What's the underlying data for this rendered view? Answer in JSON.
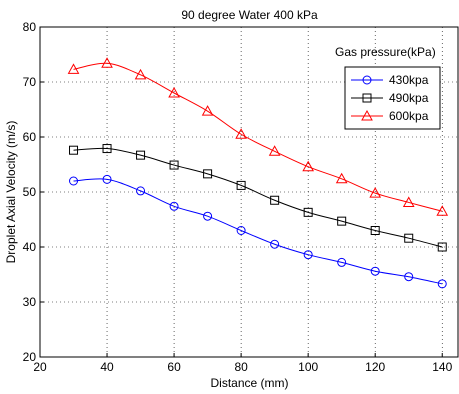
{
  "chart_data": {
    "type": "line",
    "title": "90 degree Water 400 kPa",
    "xlabel": "Distance (mm)",
    "ylabel": "Droplet Axial Velocity (m/s)",
    "xlim": [
      20,
      145
    ],
    "ylim": [
      20,
      80
    ],
    "xticks": [
      20,
      40,
      60,
      80,
      100,
      120,
      140
    ],
    "yticks": [
      20,
      30,
      40,
      50,
      60,
      70,
      80
    ],
    "grid": "dotted",
    "legend_title": "Gas pressure(kPa)",
    "legend_position": "top-right",
    "x": [
      30,
      40,
      50,
      60,
      70,
      80,
      90,
      100,
      110,
      120,
      130,
      140
    ],
    "series": [
      {
        "name": "430kpa",
        "color": "#0000ff",
        "marker": "circle",
        "values": [
          52.0,
          52.3,
          50.2,
          47.4,
          45.6,
          43.0,
          40.5,
          38.6,
          37.2,
          35.6,
          34.6,
          33.3
        ]
      },
      {
        "name": "490kpa",
        "color": "#000000",
        "marker": "square",
        "values": [
          57.6,
          57.9,
          56.7,
          54.9,
          53.3,
          51.2,
          48.5,
          46.3,
          44.7,
          43.0,
          41.6,
          40.0
        ]
      },
      {
        "name": "600kpa",
        "color": "#ff0000",
        "marker": "triangle",
        "values": [
          72.3,
          73.4,
          71.3,
          68.0,
          64.7,
          60.5,
          57.4,
          54.6,
          52.4,
          49.8,
          48.1,
          46.5
        ]
      }
    ]
  }
}
